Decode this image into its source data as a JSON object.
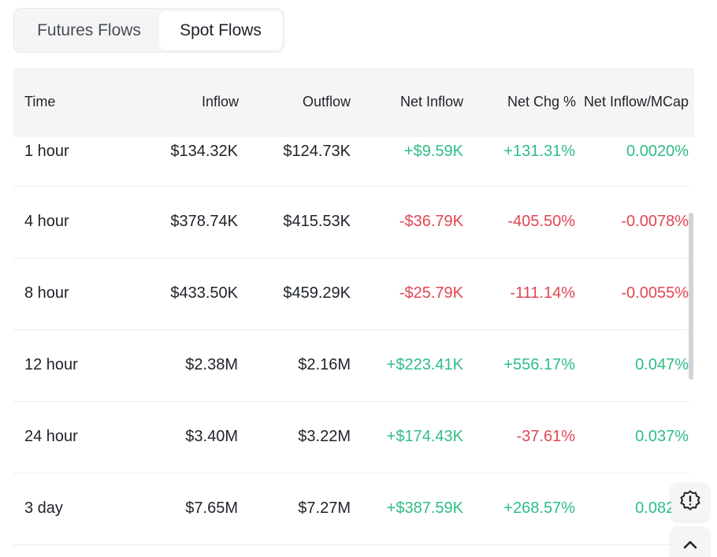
{
  "tabs": [
    {
      "label": "Futures Flows",
      "active": false
    },
    {
      "label": "Spot Flows",
      "active": true
    }
  ],
  "table": {
    "headers": {
      "time": "Time",
      "inflow": "Inflow",
      "outflow": "Outflow",
      "net_inflow": "Net Inflow",
      "net_chg": "Net Chg %",
      "net_inflow_mcap": "Net Inflow/MCap"
    },
    "rows": [
      {
        "time": "1 hour",
        "inflow": "$134.32K",
        "outflow": "$124.73K",
        "net_inflow": "+$9.59K",
        "net_chg": "+131.31%",
        "net_inflow_mcap": "0.0020%"
      },
      {
        "time": "4 hour",
        "inflow": "$378.74K",
        "outflow": "$415.53K",
        "net_inflow": "-$36.79K",
        "net_chg": "-405.50%",
        "net_inflow_mcap": "-0.0078%"
      },
      {
        "time": "8 hour",
        "inflow": "$433.50K",
        "outflow": "$459.29K",
        "net_inflow": "-$25.79K",
        "net_chg": "-111.14%",
        "net_inflow_mcap": "-0.0055%"
      },
      {
        "time": "12 hour",
        "inflow": "$2.38M",
        "outflow": "$2.16M",
        "net_inflow": "+$223.41K",
        "net_chg": "+556.17%",
        "net_inflow_mcap": "0.047%"
      },
      {
        "time": "24 hour",
        "inflow": "$3.40M",
        "outflow": "$3.22M",
        "net_inflow": "+$174.43K",
        "net_chg": "-37.61%",
        "net_inflow_mcap": "0.037%"
      },
      {
        "time": "3 day",
        "inflow": "$7.65M",
        "outflow": "$7.27M",
        "net_inflow": "+$387.59K",
        "net_chg": "+268.57%",
        "net_inflow_mcap": "0.082%"
      }
    ]
  },
  "colors": {
    "positive": "#2ebd85",
    "negative": "#e04654",
    "header_bg": "#f5f5f5"
  },
  "icons": {
    "alert_button": "alert-badge-icon",
    "scroll_top_button": "chevron-up-icon"
  }
}
